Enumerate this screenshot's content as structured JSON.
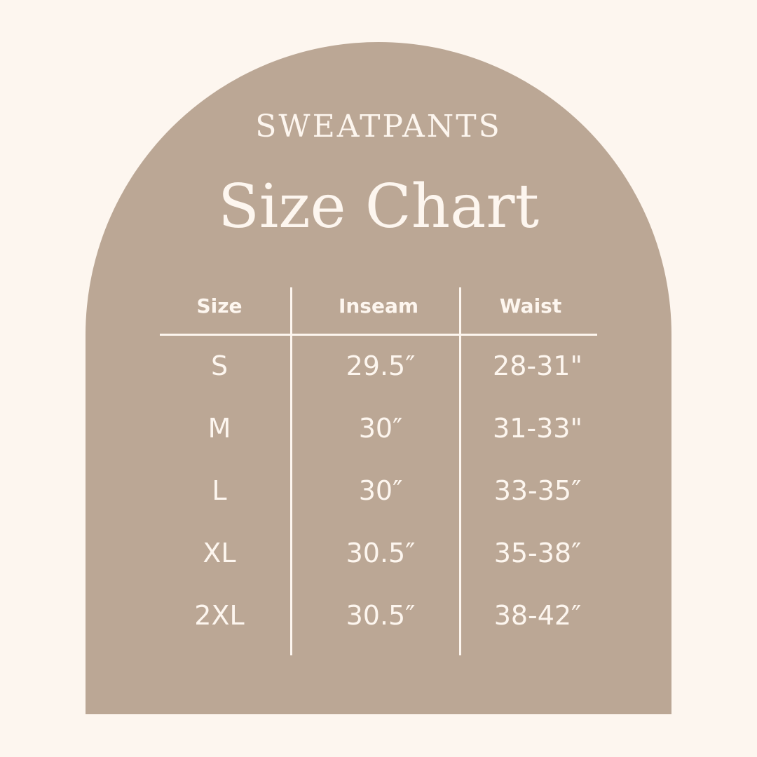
{
  "colors": {
    "background": "#fdf6ef",
    "arch": "#bba795",
    "text": "#fdf6ef"
  },
  "subtitle": "SWEATPANTS",
  "title": "Size Chart",
  "table": {
    "headers": [
      "Size",
      "Inseam",
      "Waist"
    ],
    "rows": [
      [
        "S",
        "29.5″",
        "28-31\""
      ],
      [
        "M",
        "30″",
        "31-33\""
      ],
      [
        "L",
        "30″",
        "33-35″"
      ],
      [
        "XL",
        "30.5″",
        "35-38″"
      ],
      [
        "2XL",
        "30.5″",
        "38-42″"
      ]
    ]
  }
}
